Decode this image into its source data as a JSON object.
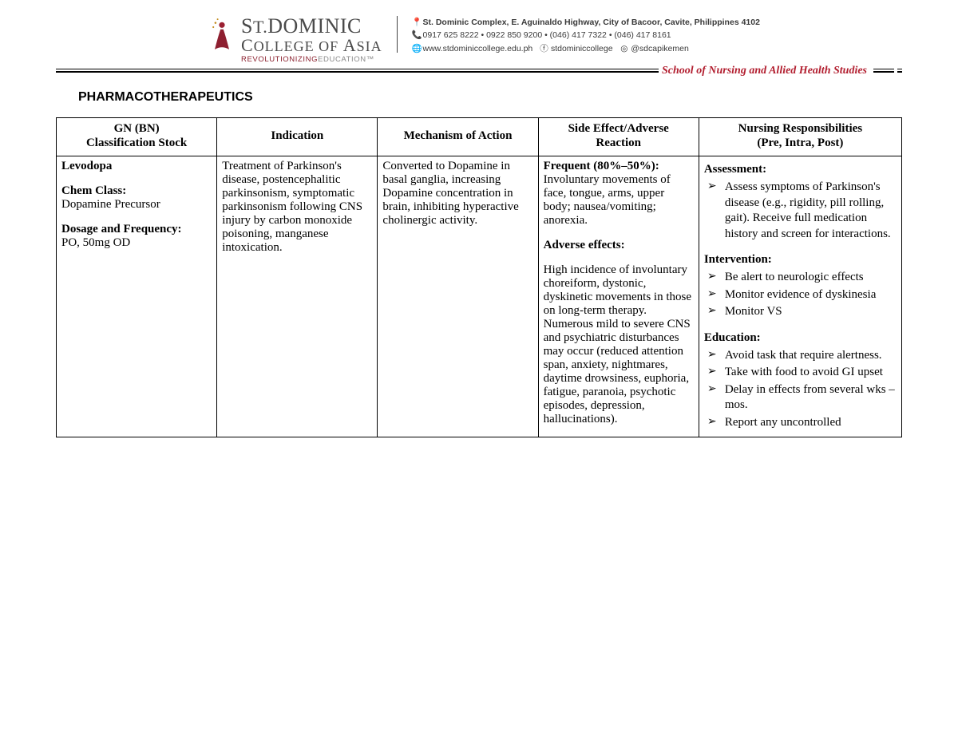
{
  "header": {
    "inst_line1_pre": "S",
    "inst_line1_small": "T.",
    "inst_line1_main": "DOMINIC",
    "inst_line2_pre": "C",
    "inst_line2_small1": "OLLEGE OF ",
    "inst_line2_pre2": "A",
    "inst_line2_small2": "SIA",
    "inst_line3_a": "REVOLUTIONIZING",
    "inst_line3_b": "EDUCATION™",
    "address": "St. Dominic Complex, E. Aguinaldo Highway, City of Bacoor, Cavite, Philippines 4102",
    "phones": "0917 625 8222  •  0922 850 9200  •  (046) 417 7322  •  (046) 417 8161",
    "web": "www.stdominiccollege.edu.ph",
    "fb": "stdominiccollege",
    "ig": "@sdcapikemen",
    "school": "School of Nursing and Allied Health Studies"
  },
  "title": "PHARMACOTHERAPEUTICS",
  "table": {
    "headers": {
      "c1a": "GN (BN)",
      "c1b": "Classification Stock",
      "c2": "Indication",
      "c3": "Mechanism of Action",
      "c4a": "Side Effect/Adverse",
      "c4b": "Reaction",
      "c5a": "Nursing Responsibilities",
      "c5b": "(Pre, Intra, Post)"
    },
    "row": {
      "drug_name": "Levodopa",
      "chem_label": "Chem Class:",
      "chem_value": "Dopamine Precursor",
      "dose_label": "Dosage and Frequency:",
      "dose_value": "PO, 50mg OD",
      "indication": "Treatment of Parkinson's disease, postencephalitic parkinsonism, symptomatic parkinsonism following CNS injury by carbon monoxide poisoning, manganese intoxication.",
      "moa": "Converted to Dopamine in basal ganglia, increasing Dopamine concentration in brain, inhibiting hyperactive cholinergic activity.",
      "se_freq_head": "Frequent (80%–50%):",
      "se_freq_body": "Involuntary movements of face, tongue, arms, upper body; nausea/vomiting; anorexia.",
      "se_adv_head": "Adverse effects:",
      "se_adv_body": "High incidence of involuntary choreiform, dystonic, dyskinetic movements in those on long-term therapy. Numerous mild to severe CNS and psychiatric disturbances may occur (reduced attention span, anxiety, nightmares, daytime drowsiness, euphoria, fatigue, paranoia, psychotic episodes, depression, hallucinations).",
      "assess_head": "Assessment:",
      "assess_items": [
        "Assess symptoms of Parkinson's disease (e.g., rigidity, pill rolling, gait). Receive full medication history and screen for interactions."
      ],
      "interv_head": "Intervention:",
      "interv_items": [
        "Be alert to neurologic effects",
        "Monitor evidence of dyskinesia",
        "Monitor VS"
      ],
      "edu_head": "Education:",
      "edu_items": [
        "Avoid task that require alertness.",
        "Take with food to avoid GI upset",
        "Delay in effects from several wks – mos.",
        "Report any uncontrolled"
      ]
    }
  }
}
